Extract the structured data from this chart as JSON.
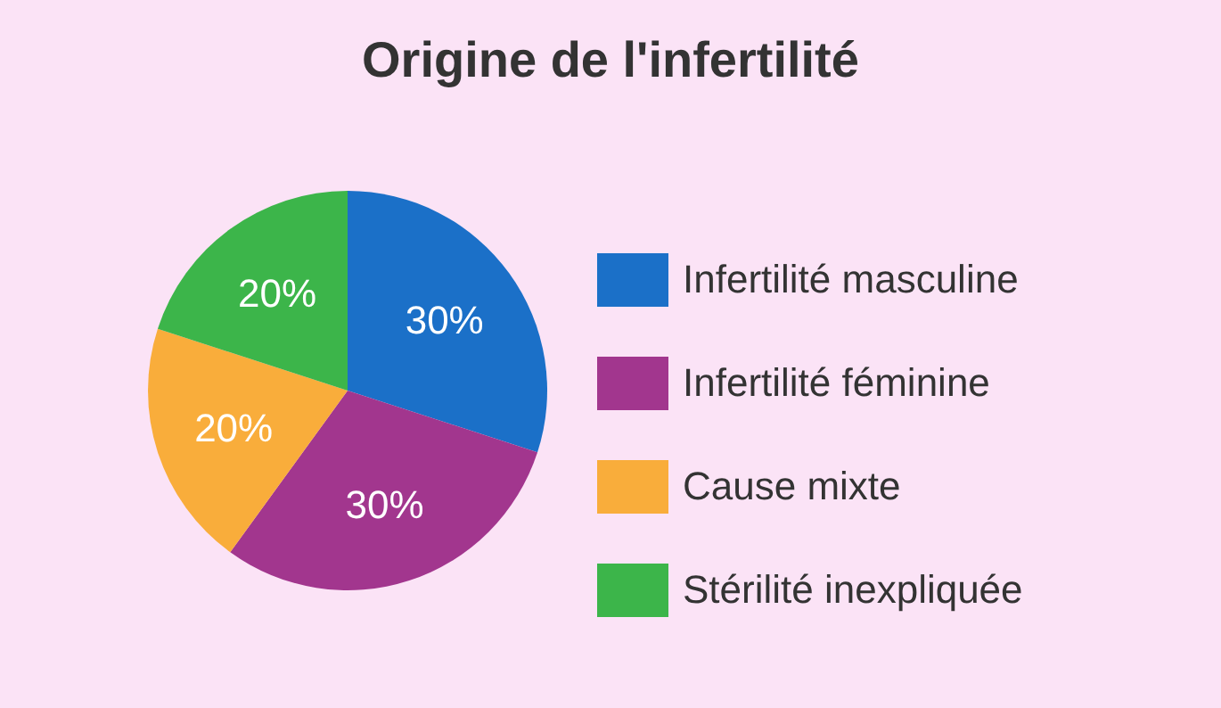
{
  "chart_data": {
    "type": "pie",
    "title": "Origine de l'infertilité",
    "categories": [
      "Infertilité masculine",
      "Infertilité féminine",
      "Cause mixte",
      "Stérilité inexpliquée"
    ],
    "values": [
      30,
      30,
      20,
      20
    ],
    "colors": [
      "#1b70c8",
      "#a2368e",
      "#f9ad3b",
      "#3cb54a"
    ],
    "value_labels": [
      "30%",
      "30%",
      "20%",
      "20%"
    ],
    "legend": "right"
  }
}
